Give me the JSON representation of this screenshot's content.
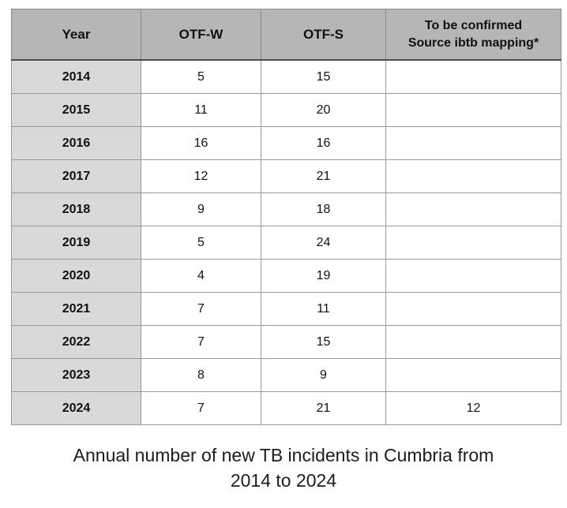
{
  "colors": {
    "header_bg": "#b6b6b6",
    "year_column_bg": "#d9d9d9",
    "cell_bg": "#ffffff",
    "grid_border": "#989898",
    "header_divider": "#4d4d4d",
    "text": "#111111"
  },
  "chart_data": {
    "type": "table",
    "title": "Annual number of new TB incidents in Cumbria from 2014 to 2024",
    "columns": [
      "Year",
      "OTF-W",
      "OTF-S",
      "To be confirmed\nSource ibtb mapping*"
    ],
    "rows": [
      [
        "2014",
        "5",
        "15",
        ""
      ],
      [
        "2015",
        "11",
        "20",
        ""
      ],
      [
        "2016",
        "16",
        "16",
        ""
      ],
      [
        "2017",
        "12",
        "21",
        ""
      ],
      [
        "2018",
        "9",
        "18",
        ""
      ],
      [
        "2019",
        "5",
        "24",
        ""
      ],
      [
        "2020",
        "4",
        "19",
        ""
      ],
      [
        "2021",
        "7",
        "11",
        ""
      ],
      [
        "2022",
        "7",
        "15",
        ""
      ],
      [
        "2023",
        "8",
        "9",
        ""
      ],
      [
        "2024",
        "7",
        "21",
        "12"
      ]
    ],
    "legend_position": "none",
    "grid": true
  },
  "caption": {
    "line1": "Annual number of new TB incidents in Cumbria from",
    "line2": "2014 to 2024"
  }
}
